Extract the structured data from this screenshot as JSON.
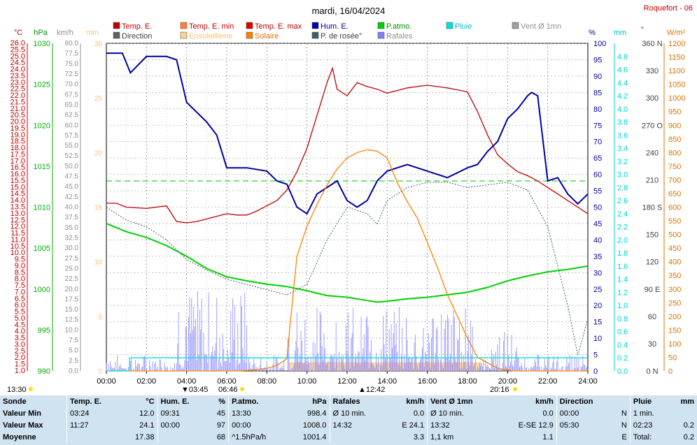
{
  "header": {
    "title": "mardi, 16/04/2024",
    "station": "Roquefort - 06"
  },
  "legend": [
    {
      "label": "Temp. E.",
      "color": "#c00000"
    },
    {
      "label": "Temp. E. min",
      "color": "#ff7f3f"
    },
    {
      "label": "Temp. E. max",
      "color": "#e00000"
    },
    {
      "label": "Hum. E.",
      "color": "#0000a0"
    },
    {
      "label": "P.atmo.",
      "color": "#00d000"
    },
    {
      "label": "Pluie",
      "color": "#00e0e0"
    },
    {
      "label": "Vent Ø 1mn",
      "color": "#a0a0a0"
    },
    {
      "label": "Direction",
      "color": "#606060"
    },
    {
      "label": "Ensoleilleme",
      "color": "#ffd090"
    },
    {
      "label": "Solaire",
      "color": "#ff8000"
    },
    {
      "label": "P. de rosée°",
      "color": "#406060"
    },
    {
      "label": "Rafales",
      "color": "#8080ff"
    }
  ],
  "axis_units": {
    "temp": "°C",
    "pressure": "hPa",
    "wind": "km/h",
    "sun": "min",
    "hum": "%",
    "rain": "mm",
    "dir": "°",
    "solar": "W/m²"
  },
  "chart_data": {
    "type": "line",
    "xlim": [
      "00:00",
      "24:00"
    ],
    "x_ticks": [
      "00:00",
      "02:00",
      "04:00",
      "06:00",
      "08:00",
      "10:00",
      "12:00",
      "14:00",
      "16:00",
      "18:00",
      "20:00",
      "22:00",
      "24:00"
    ],
    "axes": {
      "temp": {
        "ylim": [
          1.0,
          26.0
        ],
        "step": 0.5,
        "label_step": 1.0
      },
      "pressure": {
        "ylim": [
          990,
          1030
        ],
        "ticks": [
          990,
          995,
          1000,
          1005,
          1010,
          1015,
          1020,
          1025,
          1030
        ]
      },
      "wind": {
        "ylim": [
          0.0,
          80.0
        ],
        "step": 2.5
      },
      "sun": {
        "ylim": [
          0,
          30
        ],
        "ticks": [
          0,
          5,
          10,
          15,
          20,
          25,
          30
        ]
      },
      "hum": {
        "ylim": [
          0,
          100
        ],
        "step": 5
      },
      "rain": {
        "ylim": [
          0.0,
          5.0
        ],
        "step": 0.2,
        "max_label": 4.8
      },
      "dir": {
        "ylim": [
          0,
          360
        ],
        "ticks": [
          0,
          30,
          60,
          90,
          120,
          150,
          180,
          210,
          240,
          270,
          300,
          330,
          360
        ],
        "labels": {
          "0": "0 N",
          "90": "90 E",
          "180": "180 S",
          "270": "270 O",
          "360": "360 N"
        }
      },
      "solar": {
        "ylim": [
          0,
          1200
        ],
        "step": 50
      }
    },
    "series": [
      {
        "name": "Temp. E.",
        "axis": "temp",
        "color": "#c00000",
        "x": [
          0,
          0.5,
          1,
          2,
          3,
          3.5,
          4,
          4.5,
          5,
          5.5,
          6,
          6.5,
          7,
          7.5,
          8,
          8.5,
          9,
          9.5,
          10,
          10.5,
          11,
          11.27,
          11.5,
          12,
          12.5,
          13,
          13.5,
          14,
          15,
          16,
          17,
          18,
          18.5,
          19,
          19.5,
          20,
          20.5,
          21,
          21.5,
          22,
          22.5,
          23,
          23.5,
          24
        ],
        "y": [
          13.8,
          13.8,
          13.5,
          13.4,
          13.6,
          12.4,
          12.3,
          12.4,
          12.6,
          12.8,
          13.0,
          12.9,
          12.9,
          13.2,
          13.6,
          14.0,
          14.8,
          16.2,
          18.0,
          20.5,
          23.0,
          24.1,
          22.5,
          22.0,
          23.0,
          22.7,
          22.5,
          22.2,
          22.6,
          22.8,
          22.6,
          22.3,
          20.8,
          19.0,
          17.5,
          16.8,
          16.2,
          15.9,
          15.5,
          15.0,
          14.5,
          14.0,
          13.5,
          13.0
        ]
      },
      {
        "name": "Hum. E.",
        "axis": "hum",
        "color": "#0000a0",
        "x": [
          0,
          0.8,
          1.2,
          2,
          3,
          3.5,
          4,
          4.5,
          5,
          5.5,
          6,
          7,
          8,
          8.5,
          9,
          9.5,
          10,
          10.5,
          11,
          11.5,
          12,
          12.5,
          13,
          13.5,
          14,
          15,
          16,
          17,
          18,
          18.5,
          19,
          19.5,
          20,
          20.5,
          21,
          21.2,
          21.5,
          22,
          22.5,
          23,
          23.5,
          24
        ],
        "y": [
          97,
          97,
          91,
          96,
          96,
          95,
          82,
          79,
          76,
          72,
          62,
          62,
          61,
          58,
          57,
          50,
          48,
          54,
          56,
          58,
          52,
          50,
          52,
          58,
          61,
          63,
          61,
          59,
          62,
          63,
          67,
          70,
          77,
          80,
          84,
          85,
          84,
          58,
          59,
          54,
          51,
          54
        ]
      },
      {
        "name": "P.atmo.",
        "axis": "pressure",
        "color": "#00d000",
        "x": [
          0,
          1,
          2,
          3,
          4,
          5,
          6,
          7,
          8,
          9,
          10,
          11,
          12,
          13,
          13.5,
          14,
          15,
          16,
          17,
          18,
          19,
          20,
          21,
          22,
          23,
          24
        ],
        "y": [
          1008.0,
          1007.0,
          1006.3,
          1005.3,
          1004.0,
          1002.5,
          1001.5,
          1001.0,
          1000.6,
          1000.3,
          999.8,
          999.2,
          999.0,
          998.6,
          998.4,
          998.5,
          998.8,
          999.0,
          999.3,
          999.6,
          1000.2,
          1001.0,
          1001.6,
          1002.1,
          1002.4,
          1002.8
        ]
      },
      {
        "name": "Solaire",
        "axis": "solar",
        "color": "#ff8000",
        "x": [
          0,
          6.5,
          7,
          7.5,
          8,
          8.5,
          9,
          9.2,
          9.5,
          10,
          10.5,
          11,
          11.5,
          12,
          12.5,
          13,
          13.5,
          14,
          14.5,
          15,
          15.5,
          16,
          16.5,
          17,
          17.5,
          18,
          18.5,
          19,
          19.5,
          20,
          20.3,
          24
        ],
        "y": [
          0,
          0,
          2,
          5,
          10,
          20,
          45,
          200,
          420,
          530,
          610,
          680,
          740,
          780,
          800,
          810,
          805,
          780,
          690,
          620,
          560,
          470,
          380,
          280,
          200,
          120,
          50,
          30,
          10,
          3,
          0,
          0
        ]
      },
      {
        "name": "P. de rosée°",
        "axis": "temp",
        "color": "#406060",
        "x": [
          0,
          1,
          2,
          3,
          4,
          5,
          6,
          7,
          8,
          9,
          10,
          11,
          12,
          13,
          13.5,
          14,
          15,
          16,
          17,
          18,
          19,
          20,
          21,
          22,
          22.5,
          23,
          23.5,
          24
        ],
        "y": [
          13.5,
          12.5,
          12.0,
          11.0,
          9.5,
          8.7,
          8.0,
          7.6,
          7.2,
          6.8,
          7.6,
          11.0,
          13.5,
          13.0,
          12.2,
          14.0,
          15.0,
          15.4,
          15.4,
          15.0,
          15.2,
          15.4,
          14.8,
          12.0,
          9.0,
          6.0,
          2.2,
          5.0
        ]
      },
      {
        "name": "Pluie",
        "axis": "rain",
        "color": "#00e0e0",
        "x": [
          0,
          1.15,
          1.16,
          24
        ],
        "y": [
          0,
          0,
          0.2,
          0.2
        ]
      }
    ],
    "annotations": {
      "sunrise_label": "06:46",
      "sunset_label": "20:16",
      "left_time": "13:30",
      "min_temp_time": "03:45",
      "max_temp_time": "12:42",
      "reference_humidity": 58
    }
  },
  "summary": {
    "headers": [
      "Sonde",
      "Temp. E.",
      "°C",
      "Hum. E.",
      "%",
      "P.atmo.",
      "hPa",
      "Rafales",
      "km/h",
      "Vent Ø 1mn",
      "km/h",
      "Direction",
      "Pluie",
      "mm"
    ],
    "rows": [
      {
        "label": "Valeur Min",
        "t_time": "03:24",
        "t_val": "12.0",
        "h_time": "09:31",
        "h_val": "45",
        "p_time": "13:30",
        "p_val": "998.4",
        "r_sub": "Ø 10 min.",
        "r_val": "0.0",
        "w_sub": "Ø 10 min.",
        "w_val": "0.0",
        "d_time": "00:00",
        "d_val": "N",
        "rain_sub": "1 min.",
        "rain_val": ""
      },
      {
        "label": "Valeur Max",
        "t_time": "11:27",
        "t_val": "24.1",
        "h_time": "00:00",
        "h_val": "97",
        "p_time": "00:00",
        "p_val": "1008.0",
        "r_sub": "14:32",
        "r_val": "E 24.1",
        "w_sub": "13:32",
        "w_val": "E-SE 12.9",
        "d_time": "05:30",
        "d_val": "N",
        "rain_sub": "02:23",
        "rain_val": "0.2"
      },
      {
        "label": "Moyenne",
        "t_time": "",
        "t_val": "17.38",
        "h_time": "",
        "h_val": "68",
        "p_time": "^1.5hPa/h",
        "p_val": "1001.4",
        "r_sub": "",
        "r_val": "3.3",
        "w_sub": "1,1 km",
        "w_val": "1.1",
        "d_time": "",
        "d_val": "E",
        "rain_sub": "Total:",
        "rain_val": "0.2"
      }
    ]
  }
}
